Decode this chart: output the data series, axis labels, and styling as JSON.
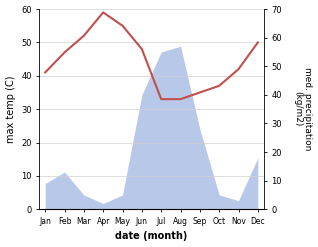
{
  "months": [
    "Jan",
    "Feb",
    "Mar",
    "Apr",
    "May",
    "Jun",
    "Jul",
    "Aug",
    "Sep",
    "Oct",
    "Nov",
    "Dec"
  ],
  "max_temp": [
    41,
    47,
    52,
    59,
    55,
    48,
    33,
    33,
    35,
    37,
    42,
    50
  ],
  "precipitation": [
    9,
    13,
    5,
    2,
    5,
    40,
    55,
    57,
    28,
    5,
    3,
    18
  ],
  "temp_color": "#c0504d",
  "precip_fill_color": "#b8c8e8",
  "ylabel_left": "max temp (C)",
  "ylabel_right": "med. precipitation\n(kg/m2)",
  "xlabel": "date (month)",
  "ylim_left": [
    0,
    60
  ],
  "ylim_right": [
    0,
    70
  ],
  "yticks_left": [
    0,
    10,
    20,
    30,
    40,
    50,
    60
  ],
  "yticks_right": [
    0,
    10,
    20,
    30,
    40,
    50,
    60,
    70
  ],
  "figsize": [
    3.18,
    2.47
  ],
  "dpi": 100
}
